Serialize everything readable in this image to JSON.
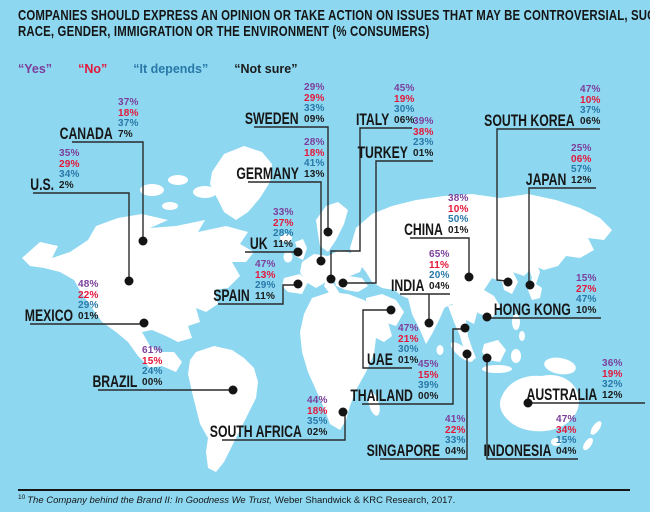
{
  "title": {
    "line1": "COMPANIES SHOULD EXPRESS AN OPINION OR TAKE ACTION ON ISSUES THAT MAY BE CONTROVERSIAL, SUCH AS",
    "line2": "RACE, GENDER, IMMIGRATION OR THE ENVIRONMENT (% CONSUMERS)"
  },
  "legend": {
    "items": [
      {
        "key": "yes",
        "label": "“Yes”"
      },
      {
        "key": "no",
        "label": "“No”"
      },
      {
        "key": "dep",
        "label": "“It depends”"
      },
      {
        "key": "ns",
        "label": "“Not sure”"
      }
    ]
  },
  "colors": {
    "background": "#8ed7f0",
    "land": "#ffffff",
    "connector": "#2a2a2a",
    "dot": "#141414",
    "yes": "#7b3f9b",
    "no": "#e4173a",
    "dep": "#2878a8",
    "ns": "#1a1a1a"
  },
  "countries": [
    {
      "id": "canada",
      "name": "CANADA",
      "yes": "37%",
      "no": "18%",
      "depends": "37%",
      "not_sure": "7%"
    },
    {
      "id": "us",
      "name": "U.S.",
      "yes": "35%",
      "no": "29%",
      "depends": "34%",
      "not_sure": "2%"
    },
    {
      "id": "mexico",
      "name": "MEXICO",
      "yes": "48%",
      "no": "22%",
      "depends": "29%",
      "not_sure": "01%"
    },
    {
      "id": "brazil",
      "name": "BRAZIL",
      "yes": "61%",
      "no": "15%",
      "depends": "24%",
      "not_sure": "00%"
    },
    {
      "id": "sweden",
      "name": "SWEDEN",
      "yes": "29%",
      "no": "29%",
      "depends": "33%",
      "not_sure": "09%"
    },
    {
      "id": "germany",
      "name": "GERMANY",
      "yes": "28%",
      "no": "18%",
      "depends": "41%",
      "not_sure": "13%"
    },
    {
      "id": "uk",
      "name": "UK",
      "yes": "33%",
      "no": "27%",
      "depends": "28%",
      "not_sure": "11%"
    },
    {
      "id": "spain",
      "name": "SPAIN",
      "yes": "47%",
      "no": "13%",
      "depends": "29%",
      "not_sure": "11%"
    },
    {
      "id": "italy",
      "name": "ITALY",
      "yes": "45%",
      "no": "19%",
      "depends": "30%",
      "not_sure": "06%"
    },
    {
      "id": "turkey",
      "name": "TURKEY",
      "yes": "39%",
      "no": "38%",
      "depends": "23%",
      "not_sure": "01%"
    },
    {
      "id": "southafrica",
      "name": "SOUTH AFRICA",
      "yes": "44%",
      "no": "18%",
      "depends": "35%",
      "not_sure": "02%"
    },
    {
      "id": "china",
      "name": "CHINA",
      "yes": "38%",
      "no": "10%",
      "depends": "50%",
      "not_sure": "01%"
    },
    {
      "id": "india",
      "name": "INDIA",
      "yes": "65%",
      "no": "11%",
      "depends": "20%",
      "not_sure": "04%"
    },
    {
      "id": "uae",
      "name": "UAE",
      "yes": "47%",
      "no": "21%",
      "depends": "30%",
      "not_sure": "01%"
    },
    {
      "id": "thailand",
      "name": "THAILAND",
      "yes": "45%",
      "no": "15%",
      "depends": "39%",
      "not_sure": "00%"
    },
    {
      "id": "singapore",
      "name": "SINGAPORE",
      "yes": "41%",
      "no": "22%",
      "depends": "33%",
      "not_sure": "04%"
    },
    {
      "id": "southkorea",
      "name": "SOUTH KOREA",
      "yes": "47%",
      "no": "10%",
      "depends": "37%",
      "not_sure": "06%"
    },
    {
      "id": "japan",
      "name": "JAPAN",
      "yes": "25%",
      "no": "06%",
      "depends": "57%",
      "not_sure": "12%"
    },
    {
      "id": "hongkong",
      "name": "HONG KONG",
      "yes": "15%",
      "no": "27%",
      "depends": "47%",
      "not_sure": "10%"
    },
    {
      "id": "indonesia",
      "name": "INDONESIA",
      "yes": "47%",
      "no": "34%",
      "depends": "15%",
      "not_sure": "04%"
    },
    {
      "id": "australia",
      "name": "AUSTRALIA",
      "yes": "36%",
      "no": "19%",
      "depends": "32%",
      "not_sure": "12%"
    }
  ],
  "chart_data": {
    "type": "table",
    "title": "Companies should express an opinion or take action on issues that may be controversial (% consumers)",
    "categories": [
      "Canada",
      "U.S.",
      "Mexico",
      "Brazil",
      "Sweden",
      "Germany",
      "UK",
      "Spain",
      "Italy",
      "Turkey",
      "South Africa",
      "China",
      "India",
      "UAE",
      "Thailand",
      "Singapore",
      "South Korea",
      "Japan",
      "Hong Kong",
      "Indonesia",
      "Australia"
    ],
    "series": [
      {
        "name": "Yes",
        "values": [
          37,
          35,
          48,
          61,
          29,
          28,
          33,
          47,
          45,
          39,
          44,
          38,
          65,
          47,
          45,
          41,
          47,
          25,
          15,
          47,
          36
        ]
      },
      {
        "name": "No",
        "values": [
          18,
          29,
          22,
          15,
          29,
          18,
          27,
          13,
          19,
          38,
          18,
          10,
          11,
          21,
          15,
          22,
          10,
          6,
          27,
          34,
          19
        ]
      },
      {
        "name": "It depends",
        "values": [
          37,
          34,
          29,
          24,
          33,
          41,
          28,
          29,
          30,
          23,
          35,
          50,
          20,
          30,
          39,
          33,
          37,
          57,
          47,
          15,
          32
        ]
      },
      {
        "name": "Not sure",
        "values": [
          7,
          2,
          1,
          0,
          9,
          13,
          11,
          11,
          6,
          1,
          2,
          1,
          4,
          1,
          0,
          4,
          6,
          12,
          10,
          4,
          12
        ]
      }
    ],
    "legend_position": "top",
    "source": "The Company behind the Brand II: In Goodness We Trust, Weber Shandwick & KRC Research, 2017."
  },
  "footnote": {
    "marker": "10",
    "italic": "The Company behind the Brand II: In Goodness We Trust,",
    "regular": "Weber Shandwick & KRC Research, 2017."
  }
}
